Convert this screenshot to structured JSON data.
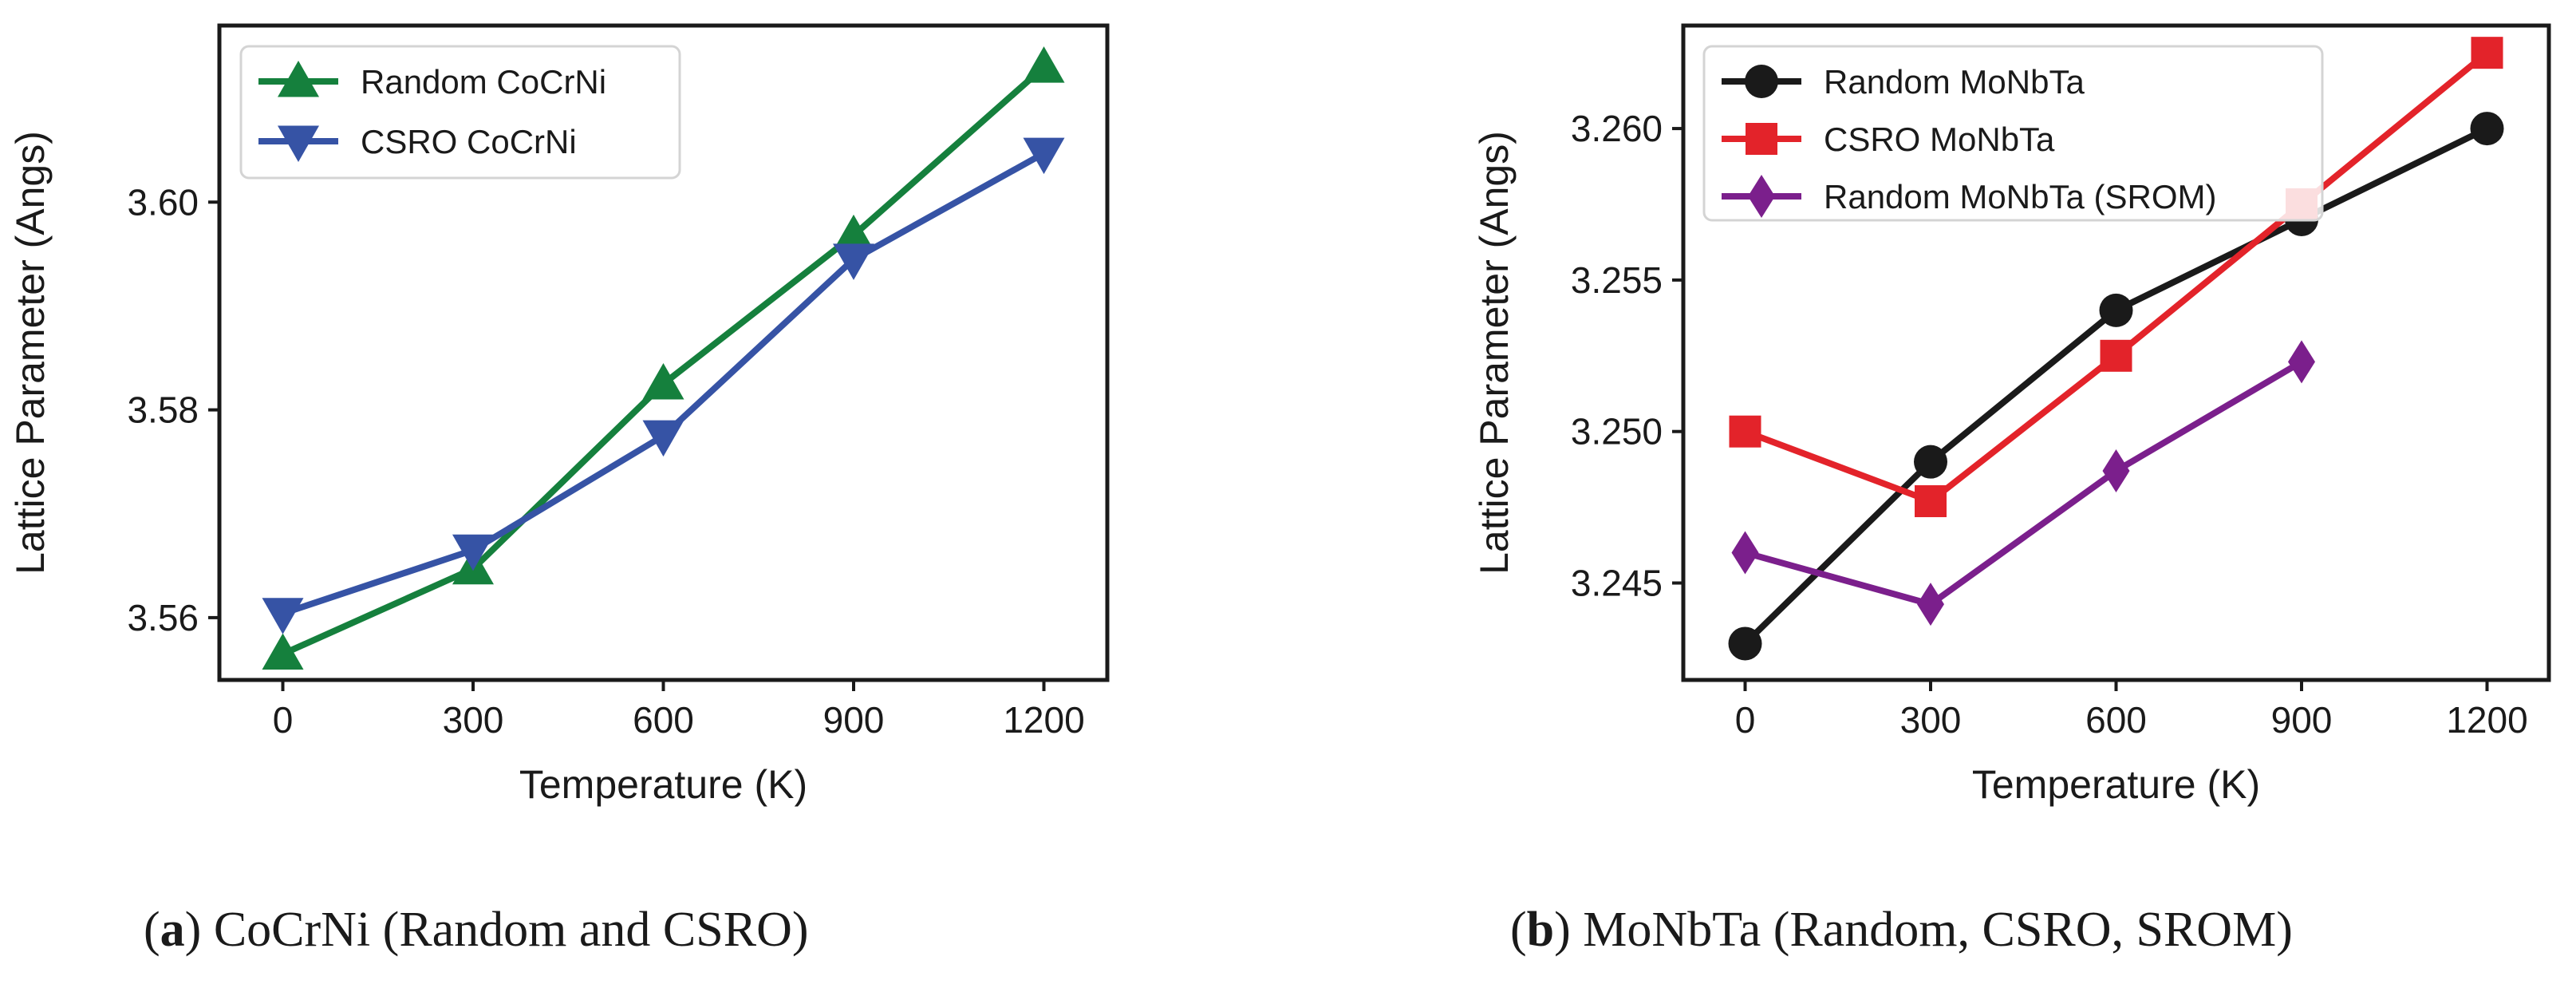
{
  "chart_data": [
    {
      "type": "line",
      "caption": {
        "tag": "a",
        "text": "CoCrNi (Random and CSRO)"
      },
      "xlabel": "Temperature (K)",
      "ylabel": "Lattice Parameter (Angs)",
      "xlim": [
        -100,
        1300
      ],
      "ylim": [
        3.554,
        3.617
      ],
      "xticks": [
        0,
        300,
        600,
        900,
        1200
      ],
      "xtick_labels": [
        "0",
        "300",
        "600",
        "900",
        "1200"
      ],
      "yticks": [
        3.56,
        3.58,
        3.6
      ],
      "ytick_labels": [
        "3.56",
        "3.58",
        "3.60"
      ],
      "grid": false,
      "legend_position": "top-left",
      "series": [
        {
          "name": "Random CoCrNi",
          "color": "#15803d",
          "marker": "triangle-up",
          "x": [
            0,
            300,
            600,
            900,
            1200
          ],
          "y": [
            3.5565,
            3.5647,
            3.5825,
            3.5968,
            3.613
          ]
        },
        {
          "name": "CSRO CoCrNi",
          "color": "#3653a5",
          "marker": "triangle-down",
          "x": [
            0,
            300,
            600,
            900,
            1200
          ],
          "y": [
            3.5604,
            3.5665,
            3.5775,
            3.5945,
            3.6047
          ]
        }
      ]
    },
    {
      "type": "line",
      "caption": {
        "tag": "b",
        "text": "MoNbTa (Random, CSRO, SROM)"
      },
      "xlabel": "Temperature (K)",
      "ylabel": "Lattice Parameter (Angs)",
      "xlim": [
        -100,
        1300
      ],
      "ylim": [
        3.2418,
        3.2634
      ],
      "xticks": [
        0,
        300,
        600,
        900,
        1200
      ],
      "xtick_labels": [
        "0",
        "300",
        "600",
        "900",
        "1200"
      ],
      "yticks": [
        3.245,
        3.25,
        3.255,
        3.26
      ],
      "ytick_labels": [
        "3.245",
        "3.250",
        "3.255",
        "3.260"
      ],
      "grid": false,
      "legend_position": "top-left",
      "series": [
        {
          "name": "Random MoNbTa",
          "color": "#1a1a1a",
          "marker": "circle",
          "x": [
            0,
            300,
            600,
            900,
            1200
          ],
          "y": [
            3.243,
            3.249,
            3.254,
            3.257,
            3.26
          ]
        },
        {
          "name": "CSRO MoNbTa",
          "color": "#e3232a",
          "marker": "square",
          "x": [
            0,
            300,
            600,
            900,
            1200
          ],
          "y": [
            3.25,
            3.2477,
            3.2525,
            3.2575,
            3.2625
          ]
        },
        {
          "name": "Random MoNbTa (SROM)",
          "color": "#7b1f8c",
          "marker": "diamond",
          "x": [
            0,
            300,
            600,
            900
          ],
          "y": [
            3.246,
            3.2443,
            3.2487,
            3.2523
          ]
        }
      ]
    }
  ]
}
